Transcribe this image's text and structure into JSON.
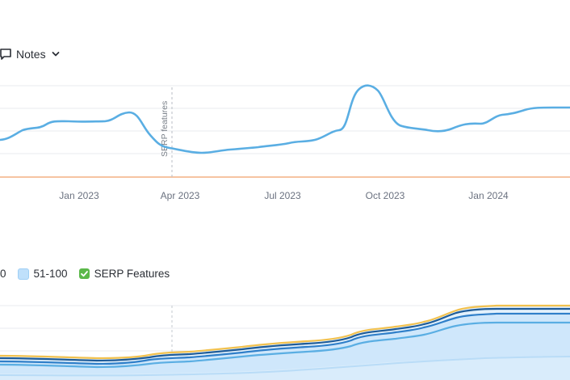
{
  "toolbar": {
    "notes_label": "Notes",
    "notes_icon": "comment-icon",
    "caret_icon": "chevron-down-icon"
  },
  "top_chart": {
    "annotation_label": "SERP features",
    "x_labels": [
      "Jan 2023",
      "Apr 2023",
      "Jul 2023",
      "Oct 2023",
      "Jan 2024"
    ],
    "line_color": "#5aaee3",
    "baseline_color": "#f4b183"
  },
  "legend": {
    "partial_label": "0",
    "items": [
      {
        "label": "51-100",
        "color": "#bfe0fb",
        "checked": true
      },
      {
        "label": "SERP Features",
        "color": "#5bb84a",
        "checked": true
      }
    ]
  },
  "chart_data": {
    "type": "line",
    "title": "",
    "xlabel": "",
    "ylabel": "",
    "x": [
      "Jan 2023",
      "Apr 2023",
      "Jul 2023",
      "Oct 2023",
      "Jan 2024"
    ],
    "annotations": [
      {
        "x": "Apr 2023",
        "text": "SERP features"
      }
    ]
  }
}
